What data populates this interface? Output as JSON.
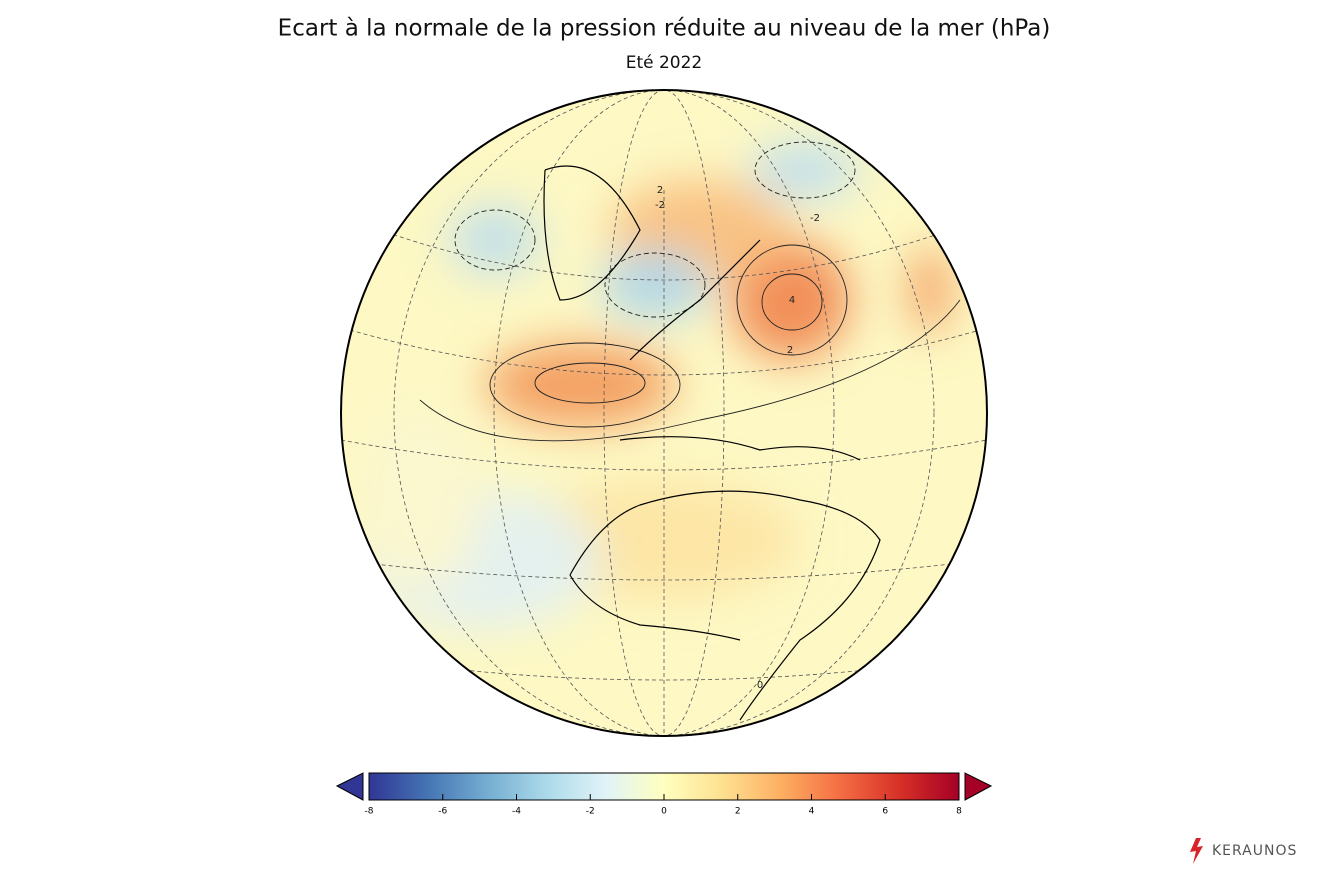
{
  "title": "Ecart à la normale de la pression réduite au niveau de la mer (hPa)",
  "subtitle": "Eté 2022",
  "colorbar": {
    "lim": [
      -8,
      8
    ],
    "ticks": [
      -8,
      -6,
      -4,
      -2,
      0,
      2,
      4,
      6,
      8
    ],
    "colors": [
      "#313695",
      "#4575b4",
      "#74add1",
      "#abd9e9",
      "#e0f3f8",
      "#ffffbf",
      "#fee090",
      "#fdae61",
      "#f46d43",
      "#d73027",
      "#a50026"
    ]
  },
  "contour_labels": [
    4,
    2,
    -2,
    2,
    -2,
    0
  ],
  "logo": "KERAUNOS"
}
